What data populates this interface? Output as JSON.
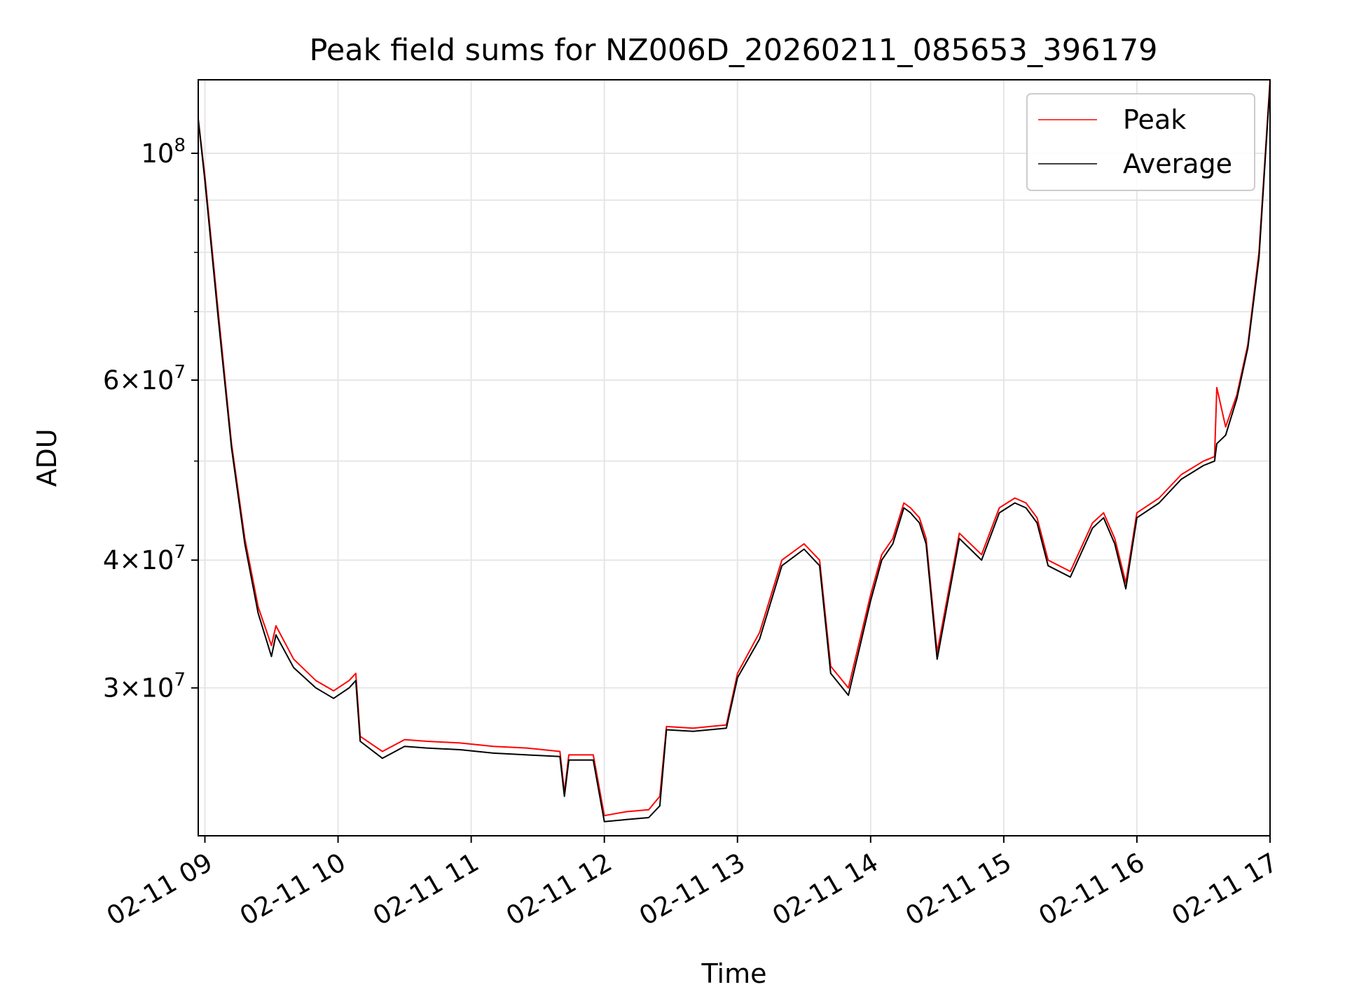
{
  "chart_data": {
    "type": "line",
    "title": "Peak field sums for NZ006D_20260211_085653_396179",
    "xlabel": "Time",
    "ylabel": "ADU",
    "yscale": "log",
    "ylim": [
      21500000,
      118000000
    ],
    "xlim": [
      "2026-02-11 08:57",
      "2026-02-11 17:00"
    ],
    "grid": true,
    "legend_position": "top-right",
    "x_ticks": [
      "02-11 09",
      "02-11 10",
      "02-11 11",
      "02-11 12",
      "02-11 13",
      "02-11 14",
      "02-11 15",
      "02-11 16",
      "02-11 17"
    ],
    "y_ticks": [
      {
        "value": 30000000,
        "mantissa": "3",
        "exponent": "7"
      },
      {
        "value": 40000000,
        "mantissa": "4",
        "exponent": "7"
      },
      {
        "value": 60000000,
        "mantissa": "6",
        "exponent": "7"
      },
      {
        "value": 100000000,
        "mantissa": "",
        "exponent": "8"
      }
    ],
    "y_minor_ticks": [
      50000000,
      70000000,
      80000000,
      90000000
    ],
    "series": [
      {
        "name": "Peak",
        "color": "#ff0000",
        "x": [
          "2026-02-11 08:57",
          "2026-02-11 09:00",
          "2026-02-11 09:06",
          "2026-02-11 09:12",
          "2026-02-11 09:18",
          "2026-02-11 09:24",
          "2026-02-11 09:30",
          "2026-02-11 09:32",
          "2026-02-11 09:40",
          "2026-02-11 09:50",
          "2026-02-11 09:58",
          "2026-02-11 10:05",
          "2026-02-11 10:08",
          "2026-02-11 10:10",
          "2026-02-11 10:20",
          "2026-02-11 10:30",
          "2026-02-11 10:40",
          "2026-02-11 10:55",
          "2026-02-11 11:10",
          "2026-02-11 11:25",
          "2026-02-11 11:40",
          "2026-02-11 11:42",
          "2026-02-11 11:44",
          "2026-02-11 11:55",
          "2026-02-11 12:00",
          "2026-02-11 12:10",
          "2026-02-11 12:20",
          "2026-02-11 12:25",
          "2026-02-11 12:28",
          "2026-02-11 12:40",
          "2026-02-11 12:55",
          "2026-02-11 13:00",
          "2026-02-11 13:10",
          "2026-02-11 13:20",
          "2026-02-11 13:30",
          "2026-02-11 13:37",
          "2026-02-11 13:42",
          "2026-02-11 13:50",
          "2026-02-11 14:00",
          "2026-02-11 14:05",
          "2026-02-11 14:10",
          "2026-02-11 14:15",
          "2026-02-11 14:18",
          "2026-02-11 14:22",
          "2026-02-11 14:25",
          "2026-02-11 14:30",
          "2026-02-11 14:40",
          "2026-02-11 14:50",
          "2026-02-11 14:58",
          "2026-02-11 15:05",
          "2026-02-11 15:10",
          "2026-02-11 15:15",
          "2026-02-11 15:20",
          "2026-02-11 15:30",
          "2026-02-11 15:40",
          "2026-02-11 15:45",
          "2026-02-11 15:50",
          "2026-02-11 15:55",
          "2026-02-11 16:00",
          "2026-02-11 16:10",
          "2026-02-11 16:20",
          "2026-02-11 16:30",
          "2026-02-11 16:35",
          "2026-02-11 16:36",
          "2026-02-11 16:40",
          "2026-02-11 16:45",
          "2026-02-11 16:50",
          "2026-02-11 16:55",
          "2026-02-11 17:00"
        ],
        "values": [
          108000000,
          95000000,
          70000000,
          52000000,
          42000000,
          36000000,
          33000000,
          34500000,
          32000000,
          30500000,
          29800000,
          30500000,
          31000000,
          26900000,
          26000000,
          26700000,
          26600000,
          26500000,
          26300000,
          26200000,
          26000000,
          23700000,
          25800000,
          25800000,
          22500000,
          22700000,
          22800000,
          23500000,
          27500000,
          27400000,
          27600000,
          31000000,
          34000000,
          40000000,
          41500000,
          40000000,
          31500000,
          30000000,
          37000000,
          40500000,
          42000000,
          45500000,
          45000000,
          44000000,
          42000000,
          32500000,
          42500000,
          40500000,
          45000000,
          46000000,
          45500000,
          44000000,
          40000000,
          39000000,
          43500000,
          44500000,
          42000000,
          38000000,
          44500000,
          46000000,
          48500000,
          50000000,
          50500000,
          59000000,
          54000000,
          58000000,
          65000000,
          80000000,
          118000000
        ]
      },
      {
        "name": "Average",
        "color": "#000000",
        "x": [
          "2026-02-11 08:57",
          "2026-02-11 09:00",
          "2026-02-11 09:06",
          "2026-02-11 09:12",
          "2026-02-11 09:18",
          "2026-02-11 09:24",
          "2026-02-11 09:30",
          "2026-02-11 09:32",
          "2026-02-11 09:40",
          "2026-02-11 09:50",
          "2026-02-11 09:58",
          "2026-02-11 10:05",
          "2026-02-11 10:08",
          "2026-02-11 10:10",
          "2026-02-11 10:20",
          "2026-02-11 10:30",
          "2026-02-11 10:40",
          "2026-02-11 10:55",
          "2026-02-11 11:10",
          "2026-02-11 11:25",
          "2026-02-11 11:40",
          "2026-02-11 11:42",
          "2026-02-11 11:44",
          "2026-02-11 11:55",
          "2026-02-11 12:00",
          "2026-02-11 12:10",
          "2026-02-11 12:20",
          "2026-02-11 12:25",
          "2026-02-11 12:28",
          "2026-02-11 12:40",
          "2026-02-11 12:55",
          "2026-02-11 13:00",
          "2026-02-11 13:10",
          "2026-02-11 13:20",
          "2026-02-11 13:30",
          "2026-02-11 13:37",
          "2026-02-11 13:42",
          "2026-02-11 13:50",
          "2026-02-11 14:00",
          "2026-02-11 14:05",
          "2026-02-11 14:10",
          "2026-02-11 14:15",
          "2026-02-11 14:18",
          "2026-02-11 14:22",
          "2026-02-11 14:25",
          "2026-02-11 14:30",
          "2026-02-11 14:40",
          "2026-02-11 14:50",
          "2026-02-11 14:58",
          "2026-02-11 15:05",
          "2026-02-11 15:10",
          "2026-02-11 15:15",
          "2026-02-11 15:20",
          "2026-02-11 15:30",
          "2026-02-11 15:40",
          "2026-02-11 15:45",
          "2026-02-11 15:50",
          "2026-02-11 15:55",
          "2026-02-11 16:00",
          "2026-02-11 16:10",
          "2026-02-11 16:20",
          "2026-02-11 16:30",
          "2026-02-11 16:35",
          "2026-02-11 16:36",
          "2026-02-11 16:40",
          "2026-02-11 16:45",
          "2026-02-11 16:50",
          "2026-02-11 16:55",
          "2026-02-11 17:00"
        ],
        "values": [
          108000000,
          94000000,
          69000000,
          51500000,
          41500000,
          35500000,
          32200000,
          33800000,
          31400000,
          30000000,
          29300000,
          30000000,
          30500000,
          26600000,
          25600000,
          26300000,
          26200000,
          26100000,
          25900000,
          25800000,
          25700000,
          23500000,
          25500000,
          25500000,
          22200000,
          22300000,
          22400000,
          23000000,
          27300000,
          27200000,
          27400000,
          30700000,
          33500000,
          39500000,
          41000000,
          39500000,
          31000000,
          29500000,
          36500000,
          40000000,
          41500000,
          45000000,
          44500000,
          43500000,
          41500000,
          32000000,
          42000000,
          40000000,
          44500000,
          45500000,
          45000000,
          43500000,
          39500000,
          38500000,
          43000000,
          44000000,
          41500000,
          37500000,
          44000000,
          45500000,
          48000000,
          49500000,
          50000000,
          52000000,
          53000000,
          57500000,
          64500000,
          79000000,
          117000000
        ]
      }
    ]
  }
}
